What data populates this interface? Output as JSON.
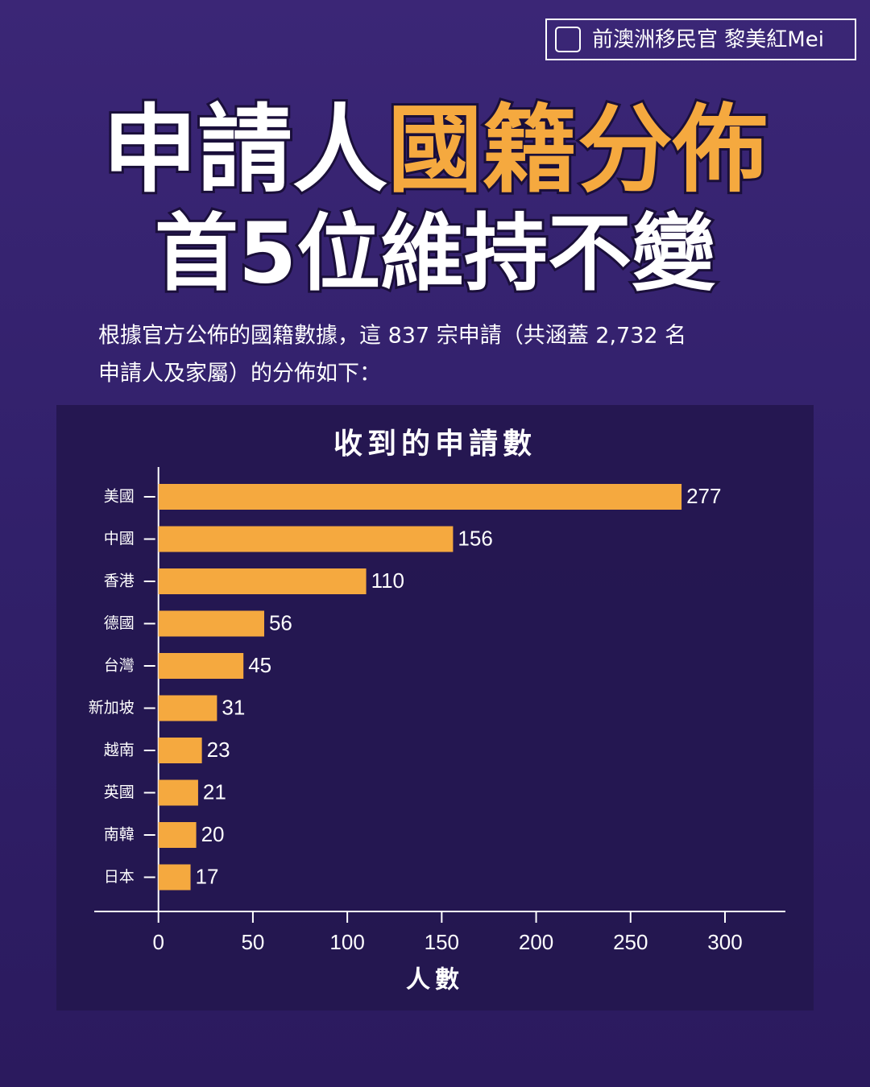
{
  "header": {
    "badge": "前澳洲移民官 黎美紅Mei",
    "headline_white": "申請人",
    "headline_orange": "國籍分佈",
    "headline_line2": "首5位維持不變",
    "intro": [
      "根據官方公佈的國籍數據，這 837 宗申請（共涵蓋 2,732 名",
      "申請人及家屬）的分佈如下："
    ]
  },
  "chart_data": {
    "type": "hbar",
    "title": "收到的申請數",
    "xlabel": "人數",
    "categories": [
      "美國",
      "中國",
      "香港",
      "德國",
      "台灣",
      "新加坡",
      "越南",
      "英國",
      "南韓",
      "日本"
    ],
    "values": [
      277,
      156,
      110,
      56,
      45,
      31,
      23,
      21,
      20,
      17
    ],
    "color": "#f5a93f",
    "xlim": [
      -34,
      332
    ],
    "xticks": [
      0,
      50,
      100,
      150,
      200,
      250,
      300
    ]
  }
}
